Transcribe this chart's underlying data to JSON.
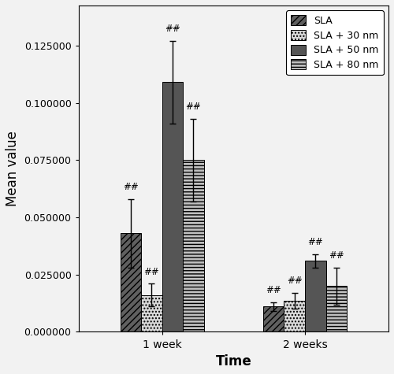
{
  "groups": [
    "1 week",
    "2 weeks"
  ],
  "series": [
    "SLA",
    "SLA + 30 nm",
    "SLA + 50 nm",
    "SLA + 80 nm"
  ],
  "values": [
    [
      0.043,
      0.016,
      0.109,
      0.075
    ],
    [
      0.011,
      0.0135,
      0.031,
      0.02
    ]
  ],
  "errors": [
    [
      0.015,
      0.005,
      0.018,
      0.018
    ],
    [
      0.002,
      0.0035,
      0.003,
      0.008
    ]
  ],
  "annotations": [
    [
      "##",
      "##",
      "##",
      "##"
    ],
    [
      "##",
      "##",
      "##",
      "##"
    ]
  ],
  "colors": [
    "#606060",
    "#d8d8d8",
    "#555555",
    "#c0c0c0"
  ],
  "hatches": [
    "////",
    "....",
    "",
    "----"
  ],
  "ylabel": "Mean value",
  "xlabel": "Time",
  "ylim": [
    0,
    0.1425
  ],
  "yticks": [
    0.0,
    0.025,
    0.05,
    0.075,
    0.1,
    0.125
  ],
  "ytick_labels": [
    "0.000000",
    "0.025000",
    "0.050000",
    "0.075000",
    "0.100000",
    "0.125000"
  ],
  "bar_width": 0.19,
  "group_centers": [
    1.0,
    2.3
  ],
  "legend_labels": [
    "SLA",
    "SLA + 30 nm",
    "SLA + 50 nm",
    "SLA + 80 nm"
  ],
  "background_color": "#f2f2f2",
  "plot_bg_color": "#f2f2f2",
  "annotation_fontsize": 8.5,
  "axis_label_fontsize": 12,
  "tick_fontsize": 9,
  "legend_fontsize": 9
}
